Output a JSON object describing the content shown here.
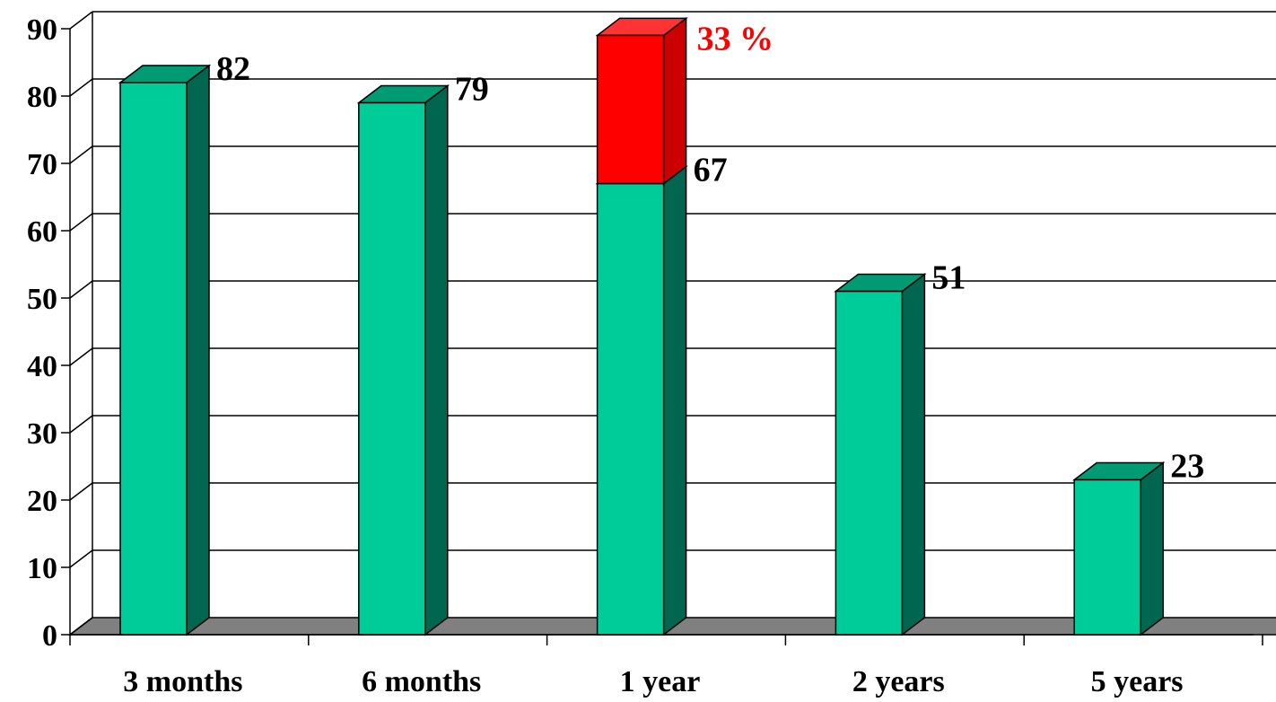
{
  "chart_data": {
    "type": "bar",
    "categories": [
      "3 months",
      "6 months",
      "1 year",
      "2 years",
      "5 years"
    ],
    "values": [
      82,
      79,
      67,
      51,
      23
    ],
    "value_labels": [
      "82",
      "79",
      "67",
      "51",
      "23"
    ],
    "stacked_top": {
      "category": "1 year",
      "value": 33,
      "label": "33 %"
    },
    "ylim": [
      0,
      90
    ],
    "yticks": [
      0,
      10,
      20,
      30,
      40,
      50,
      60,
      70,
      80,
      90
    ],
    "grid": true,
    "title": "",
    "xlabel": "",
    "ylabel": ""
  },
  "colors": {
    "bar_front": "#00cc99",
    "bar_side": "#006650",
    "bar_top": "#009a73",
    "highlight_front": "#ff0000",
    "highlight_side": "#cc0000",
    "highlight_top": "#ff3333",
    "highlight_text": "#ff0000",
    "floor": "#808080",
    "grid": "#000000",
    "text": "#000000"
  }
}
